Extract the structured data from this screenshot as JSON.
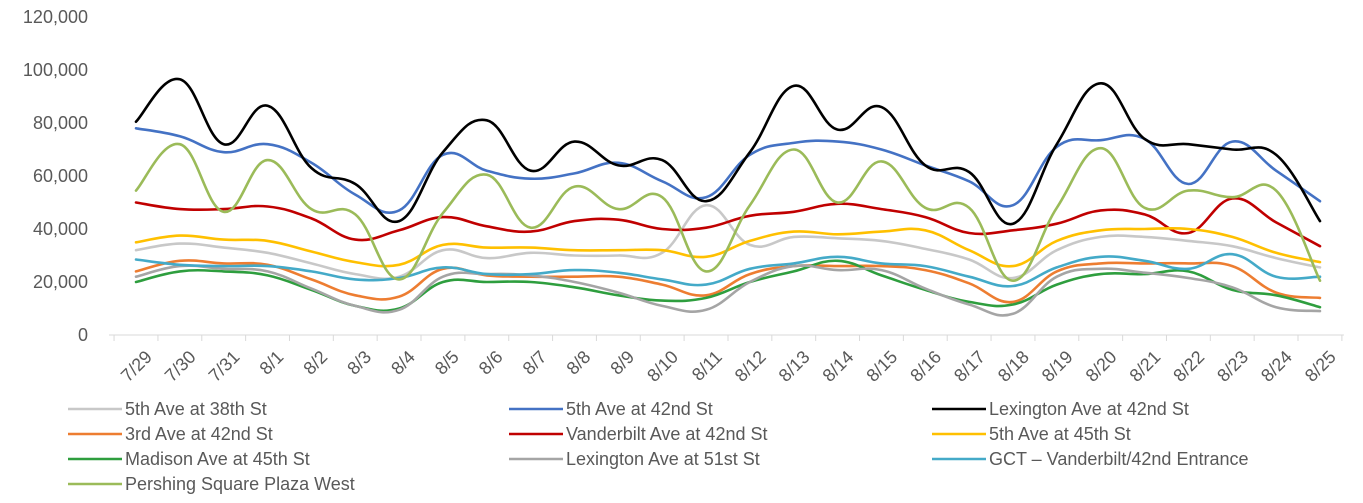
{
  "chart_data": {
    "type": "line",
    "smooth": true,
    "title": "",
    "xlabel": "",
    "ylabel": "",
    "ylim": [
      0,
      120000
    ],
    "yticks": [
      0,
      20000,
      40000,
      60000,
      80000,
      100000,
      120000
    ],
    "ytick_labels": [
      "0",
      "20,000",
      "40,000",
      "60,000",
      "80,000",
      "100,000",
      "120,000"
    ],
    "grid": false,
    "legend_position": "bottom",
    "categories": [
      "7/29",
      "7/30",
      "7/31",
      "8/1",
      "8/2",
      "8/3",
      "8/4",
      "8/5",
      "8/6",
      "8/7",
      "8/8",
      "8/9",
      "8/10",
      "8/11",
      "8/12",
      "8/13",
      "8/14",
      "8/15",
      "8/16",
      "8/17",
      "8/18",
      "8/19",
      "8/20",
      "8/21",
      "8/22",
      "8/23",
      "8/24",
      "8/25"
    ],
    "series": [
      {
        "name": "5th Ave at 38th St",
        "color": "#c8c8c8",
        "values": [
          32000,
          34500,
          33000,
          31000,
          27000,
          23000,
          22000,
          32000,
          29000,
          31000,
          30000,
          30000,
          31000,
          49000,
          34000,
          37000,
          36500,
          35500,
          32500,
          28500,
          21500,
          32000,
          37000,
          37000,
          35500,
          33500,
          29000,
          25500
        ]
      },
      {
        "name": "5th Ave at 42nd St",
        "color": "#4472c4",
        "values": [
          78000,
          75000,
          69000,
          72000,
          65000,
          53000,
          47000,
          68000,
          62000,
          59000,
          61000,
          65000,
          58000,
          52000,
          68000,
          72500,
          73000,
          70000,
          64000,
          58000,
          49000,
          71000,
          73500,
          74000,
          57000,
          73000,
          62000,
          50500
        ]
      },
      {
        "name": "Lexington Ave at 42nd St",
        "color": "#000000",
        "values": [
          80500,
          96500,
          72000,
          86500,
          63000,
          57000,
          43000,
          69000,
          81000,
          62000,
          73000,
          64000,
          66000,
          50500,
          69000,
          94000,
          77500,
          86000,
          64000,
          61500,
          42000,
          72000,
          95000,
          74000,
          72000,
          70000,
          68000,
          43000
        ]
      },
      {
        "name": "3rd Ave at 42nd St",
        "color": "#ed7d31",
        "values": [
          24000,
          28000,
          27000,
          26500,
          21000,
          15000,
          14500,
          25000,
          22500,
          22000,
          22000,
          22000,
          19000,
          15000,
          23000,
          26000,
          26000,
          26000,
          24500,
          19500,
          12500,
          24000,
          27000,
          27000,
          27000,
          26000,
          16000,
          14000
        ]
      },
      {
        "name": "Vanderbilt Ave at 42nd St",
        "color": "#c00000",
        "values": [
          50000,
          47500,
          47500,
          48500,
          44000,
          36000,
          39500,
          44500,
          41000,
          39000,
          43000,
          43500,
          40000,
          40500,
          45000,
          46500,
          49500,
          47500,
          44500,
          38500,
          39500,
          42000,
          47000,
          45500,
          38500,
          51500,
          42500,
          33500
        ]
      },
      {
        "name": "5th Ave at 45th St",
        "color": "#ffc000",
        "values": [
          35000,
          37500,
          36000,
          35500,
          31500,
          27500,
          26500,
          34000,
          33000,
          33000,
          32000,
          32000,
          32000,
          29500,
          35500,
          39000,
          38000,
          39000,
          39500,
          32000,
          26000,
          35500,
          39500,
          40000,
          40000,
          37000,
          31000,
          27500
        ]
      },
      {
        "name": "Madison Ave at 45th St",
        "color": "#2e9e3e",
        "values": [
          20000,
          24000,
          24000,
          22500,
          17000,
          11000,
          10000,
          20000,
          20000,
          20000,
          18000,
          15000,
          13000,
          14000,
          20000,
          24000,
          28000,
          22500,
          17000,
          12500,
          11500,
          19000,
          23000,
          23000,
          24000,
          17000,
          15000,
          10500
        ]
      },
      {
        "name": "Lexington Ave at 51st St",
        "color": "#a5a5a5",
        "values": [
          22000,
          26000,
          25000,
          24000,
          17500,
          11000,
          9500,
          22000,
          23000,
          22500,
          20000,
          16000,
          11000,
          9500,
          20000,
          26000,
          24500,
          24500,
          17500,
          11500,
          8000,
          22000,
          25000,
          23500,
          21500,
          18000,
          10500,
          9000
        ]
      },
      {
        "name": "GCT – Vanderbilt/42nd Entrance",
        "color": "#44aac8",
        "values": [
          28500,
          26500,
          26000,
          26000,
          24000,
          21000,
          21500,
          25500,
          23000,
          23000,
          24500,
          23500,
          21000,
          19000,
          25000,
          27000,
          29500,
          27000,
          26000,
          22000,
          18500,
          25500,
          29500,
          28000,
          25000,
          30500,
          22000,
          22000
        ]
      },
      {
        "name": "Pershing Square Plaza West",
        "color": "#9bbb59",
        "values": [
          54500,
          72000,
          46500,
          66000,
          47500,
          45500,
          21000,
          46000,
          60500,
          40500,
          56000,
          47500,
          52000,
          24000,
          49000,
          70000,
          50000,
          65500,
          48000,
          48000,
          20500,
          48000,
          70500,
          48000,
          54500,
          52000,
          54500,
          20500
        ]
      }
    ]
  }
}
